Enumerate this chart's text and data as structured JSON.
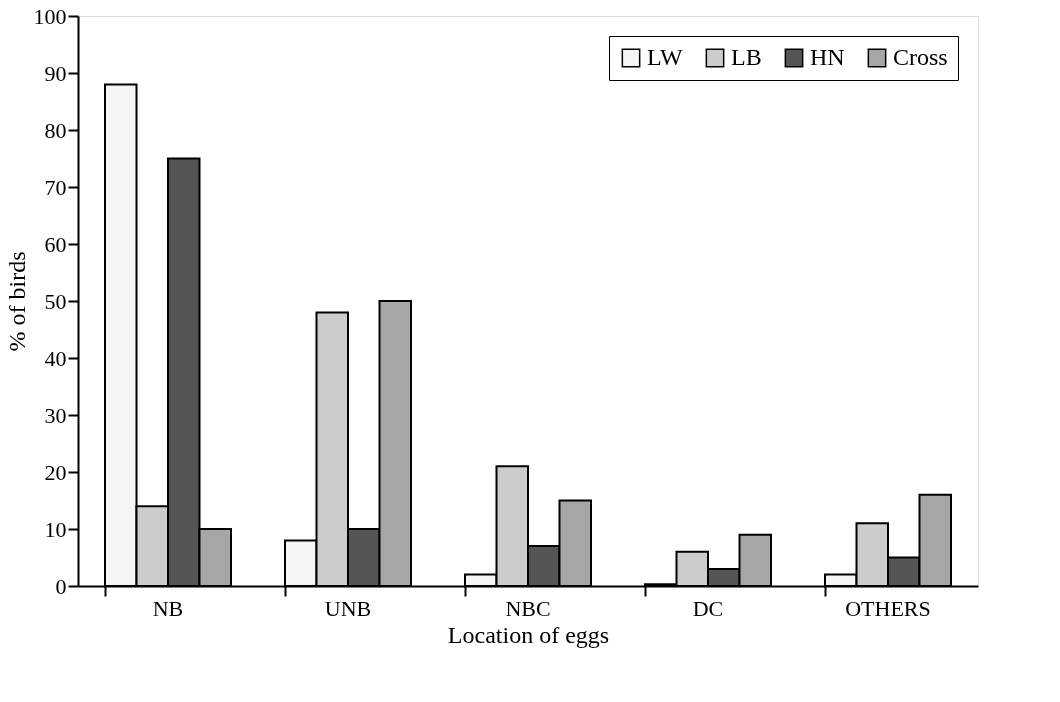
{
  "chart_data": {
    "type": "bar",
    "xlabel": "Location of eggs",
    "ylabel": "% of birds",
    "categories": [
      "NB",
      "UNB",
      "NBC",
      "DC",
      "OTHERS"
    ],
    "series": [
      {
        "name": "LW",
        "color": "#f5f5f5",
        "values": [
          88,
          8,
          2,
          0.3,
          2
        ]
      },
      {
        "name": "LB",
        "color": "#cccccc",
        "values": [
          14,
          48,
          21,
          6,
          11
        ]
      },
      {
        "name": "HN",
        "color": "#555555",
        "values": [
          75,
          10,
          7,
          3,
          5
        ]
      },
      {
        "name": "Cross",
        "color": "#a6a6a6",
        "values": [
          10,
          50,
          15,
          9,
          16
        ]
      }
    ],
    "ylim": [
      0,
      100
    ],
    "yticks": [
      0,
      10,
      20,
      30,
      40,
      50,
      60,
      70,
      80,
      90,
      100
    ],
    "grid": false,
    "legend": "top right"
  }
}
